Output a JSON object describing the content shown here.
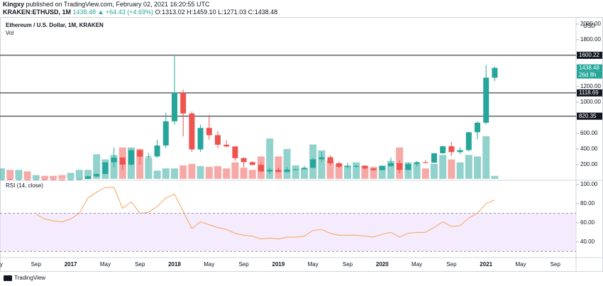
{
  "header": {
    "publisher": "Kingxy",
    "published": "published on TradingView.com, February 02, 2021 16:20:55 UTC",
    "symbol": "KRAKEN:ETHUSD, 1M",
    "last": "1438.48",
    "change": "▲ +64.43 (+4.69%)",
    "ohlc": [
      "O:1313.02",
      "H:1459.10",
      "L:1271.03",
      "C:1438.48"
    ]
  },
  "chart_data": {
    "type": "candlestick",
    "title": "Ethereum / U.S. Dollar, 1M, KRAKEN",
    "volume_label": "Vol",
    "currency": "USD",
    "countdown": "26d 8h",
    "up_color": "#26a69a",
    "down_color": "#ef5350",
    "categories": [
      "y",
      null,
      null,
      null,
      "Sep",
      null,
      null,
      null,
      "2017",
      null,
      null,
      null,
      "May",
      null,
      null,
      null,
      "Sep",
      null,
      null,
      null,
      "2018",
      null,
      null,
      null,
      "May",
      null,
      null,
      null,
      "Sep",
      null,
      null,
      null,
      "2019",
      null,
      null,
      null,
      "May",
      null,
      null,
      null,
      "Sep",
      null,
      null,
      null,
      "2020",
      null,
      null,
      null,
      "May",
      null,
      null,
      null,
      "Sep",
      null,
      null,
      null,
      "2021",
      null,
      null,
      null,
      "May",
      null,
      null,
      null,
      "Sep"
    ],
    "open": [
      9.3,
      14.0,
      12.3,
      12.4,
      11.2,
      13.2,
      11.4,
      8.6,
      8.0,
      10.7,
      15.7,
      50,
      80,
      230,
      290,
      200,
      385,
      302,
      305,
      445,
      755,
      1120,
      855,
      395,
      670,
      577,
      455,
      433,
      283,
      232,
      197,
      113,
      133,
      106,
      136,
      141,
      160,
      268,
      294,
      218,
      172,
      180,
      182,
      151,
      130,
      180,
      219,
      133,
      207,
      231,
      225,
      346,
      435,
      360,
      386,
      615,
      737,
      1313.02,
      null,
      null,
      null,
      null,
      null,
      null,
      null
    ],
    "high": [
      14.6,
      21.5,
      14.9,
      12.5,
      14.0,
      14.2,
      11.6,
      9.2,
      11.3,
      16.2,
      55,
      82,
      232,
      420,
      293,
      400,
      395,
      350,
      520,
      865,
      1590,
      1160,
      880,
      710,
      835,
      630,
      515,
      435,
      295,
      240,
      225,
      160,
      160,
      165,
      147,
      185,
      285,
      362,
      320,
      240,
      225,
      198,
      192,
      155,
      185,
      288,
      253,
      228,
      245,
      256,
      350,
      445,
      490,
      420,
      620,
      755,
      1475,
      1459.1,
      null,
      null,
      null,
      null,
      null,
      null,
      null
    ],
    "low": [
      8.9,
      11.0,
      9.9,
      10.3,
      11.0,
      10.3,
      8.5,
      6.5,
      7.9,
      10.5,
      15.3,
      42,
      79,
      167,
      130,
      185,
      200,
      275,
      285,
      415,
      715,
      560,
      365,
      365,
      520,
      410,
      420,
      250,
      165,
      189,
      101,
      81,
      100,
      101,
      124,
      140,
      156,
      230,
      190,
      160,
      152,
      156,
      137,
      117,
      127,
      178,
      90,
      128,
      175,
      215,
      222,
      340,
      310,
      336,
      370,
      525,
      715,
      1271.03,
      null,
      null,
      null,
      null,
      null,
      null,
      null
    ],
    "close": [
      14.0,
      12.3,
      12.4,
      11.2,
      13.2,
      11.4,
      8.6,
      8.0,
      10.7,
      15.7,
      50,
      80,
      230,
      290,
      200,
      385,
      302,
      305,
      445,
      755,
      1120,
      855,
      395,
      670,
      577,
      455,
      433,
      283,
      232,
      197,
      113,
      133,
      106,
      136,
      141,
      160,
      268,
      294,
      218,
      172,
      180,
      182,
      151,
      130,
      180,
      219,
      133,
      207,
      231,
      225,
      346,
      435,
      360,
      386,
      615,
      737,
      1314,
      1438.48,
      null,
      null,
      null,
      null,
      null,
      null,
      null
    ],
    "volume": [
      14,
      12,
      12,
      10,
      5,
      4,
      4,
      5,
      8,
      12,
      12,
      33,
      26,
      32,
      42,
      42,
      40,
      28,
      11,
      14,
      14,
      18,
      20,
      17,
      16,
      17,
      14,
      22,
      15,
      12,
      30,
      54,
      30,
      40,
      18,
      14,
      46,
      38,
      24,
      20,
      18,
      22,
      18,
      16,
      18,
      24,
      42,
      22,
      20,
      14,
      20,
      32,
      26,
      22,
      32,
      30,
      57,
      4,
      null,
      null,
      null,
      null,
      null,
      null,
      null
    ],
    "ylim": [
      18,
      2081
    ],
    "yticks": [
      {
        "value": 200,
        "label": "200.00"
      },
      {
        "value": 400,
        "label": "400.00"
      },
      {
        "value": 600,
        "label": "600.00"
      },
      {
        "value": 1000,
        "label": "1000.00"
      },
      {
        "value": 1200,
        "label": "1200.00"
      },
      {
        "value": 1800,
        "label": "1800.00"
      },
      {
        "value": 2000,
        "label": "2000.00"
      }
    ],
    "levels": [
      1600.22,
      1118.69,
      820.35
    ],
    "rsi": {
      "label": "RSI (14, close)",
      "color": "#f7a35c",
      "band": [
        30,
        70
      ],
      "band_color": "#ede0fb",
      "values": [
        null,
        null,
        null,
        null,
        69,
        64,
        62,
        61,
        64,
        70,
        86,
        92,
        97,
        97,
        75,
        82,
        70,
        71,
        77,
        86,
        90,
        72,
        54,
        61,
        58,
        55,
        53,
        49,
        47,
        46,
        43,
        44,
        43,
        45,
        45,
        46,
        52,
        53,
        49,
        47,
        47,
        47,
        46,
        45,
        48,
        50,
        45,
        49,
        50,
        50,
        55,
        61,
        56,
        57,
        65,
        70,
        80,
        84,
        null,
        null,
        null,
        null,
        null,
        null,
        null
      ],
      "ylim": [
        28,
        103
      ],
      "yticks": [
        {
          "value": 40,
          "label": "40.00"
        },
        {
          "value": 60,
          "label": "60.00"
        },
        {
          "value": 80,
          "label": "80.00"
        },
        {
          "value": 100,
          "label": "100.00"
        }
      ]
    }
  },
  "footer": {
    "brand": "TradingView"
  }
}
